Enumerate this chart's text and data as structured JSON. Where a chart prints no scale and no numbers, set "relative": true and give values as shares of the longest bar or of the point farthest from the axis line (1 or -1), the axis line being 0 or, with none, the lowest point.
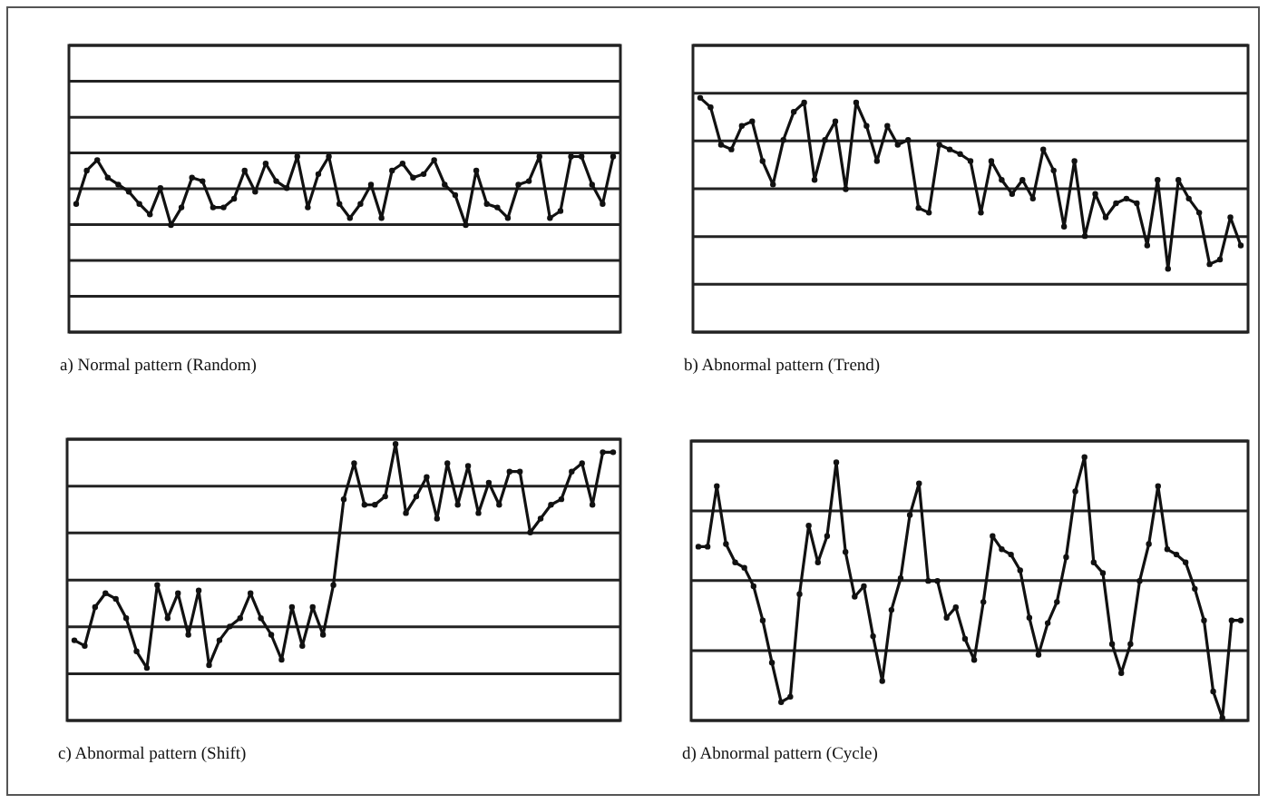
{
  "chart_data": [
    {
      "type": "line",
      "title": "a) Normal pattern (Random)",
      "marker": "circle",
      "relative": true,
      "ref_lines": [
        {
          "axis": "y",
          "value": 0.204
        },
        {
          "axis": "y",
          "value": 0.408
        },
        {
          "axis": "y",
          "value": 0.612
        },
        {
          "axis": "y",
          "value": 0.816
        },
        {
          "axis": "y",
          "value": 1.02
        },
        {
          "axis": "y",
          "value": 1.224
        },
        {
          "axis": "y",
          "value": 1.429
        },
        {
          "axis": "y",
          "value": 1.633
        }
      ],
      "categories": [
        null,
        null,
        null,
        null,
        null,
        null,
        null,
        null,
        null,
        null,
        null,
        null,
        null,
        null,
        null,
        null,
        null,
        null,
        null,
        null,
        null,
        null,
        null,
        null,
        null,
        null,
        null,
        null,
        null,
        null,
        null,
        null,
        null,
        null,
        null,
        null,
        null,
        null,
        null,
        null,
        null,
        null,
        null,
        null,
        null,
        null,
        null,
        null,
        null,
        null,
        null,
        null
      ],
      "series": [
        {
          "color": "#111111",
          "values": [
            0.73,
            0.92,
            0.98,
            0.88,
            0.84,
            0.8,
            0.73,
            0.67,
            0.82,
            0.61,
            0.71,
            0.88,
            0.86,
            0.71,
            0.71,
            0.76,
            0.92,
            0.8,
            0.96,
            0.86,
            0.82,
            1,
            0.71,
            0.9,
            1,
            0.73,
            0.65,
            0.73,
            0.84,
            0.65,
            0.92,
            0.96,
            0.88,
            0.9,
            0.98,
            0.84,
            0.78,
            0.61,
            0.92,
            0.73,
            0.71,
            0.65,
            0.84,
            0.86,
            1,
            0.65,
            0.69,
            1,
            1,
            0.84,
            0.73,
            1
          ]
        }
      ]
    },
    {
      "type": "line",
      "title": "b) Abnormal pattern (Trend)",
      "marker": "circle",
      "relative": true,
      "ref_lines": [
        {
          "axis": "y",
          "value": 0.204
        },
        {
          "axis": "y",
          "value": 0.408
        },
        {
          "axis": "y",
          "value": 0.612
        },
        {
          "axis": "y",
          "value": 0.816
        },
        {
          "axis": "y",
          "value": 1.02
        },
        {
          "axis": "y",
          "value": 1.224
        }
      ],
      "categories": [
        null,
        null,
        null,
        null,
        null,
        null,
        null,
        null,
        null,
        null,
        null,
        null,
        null,
        null,
        null,
        null,
        null,
        null,
        null,
        null,
        null,
        null,
        null,
        null,
        null,
        null,
        null,
        null,
        null,
        null,
        null,
        null,
        null,
        null,
        null,
        null,
        null,
        null,
        null,
        null,
        null,
        null,
        null,
        null,
        null,
        null,
        null,
        null,
        null,
        null,
        null,
        null,
        null
      ],
      "series": [
        {
          "color": "#111111",
          "values": [
            1,
            0.96,
            0.8,
            0.78,
            0.88,
            0.9,
            0.73,
            0.63,
            0.82,
            0.94,
            0.98,
            0.65,
            0.82,
            0.9,
            0.61,
            0.98,
            0.88,
            0.73,
            0.88,
            0.8,
            0.82,
            0.53,
            0.51,
            0.8,
            0.78,
            0.76,
            0.73,
            0.51,
            0.73,
            0.65,
            0.59,
            0.65,
            0.57,
            0.78,
            0.69,
            0.45,
            0.73,
            0.41,
            0.59,
            0.49,
            0.55,
            0.57,
            0.55,
            0.37,
            0.65,
            0.27,
            0.65,
            0.57,
            0.51,
            0.29,
            0.31,
            0.49,
            0.37
          ]
        }
      ]
    },
    {
      "type": "line",
      "title": "c) Abnormal pattern (Shift)",
      "marker": "circle",
      "relative": true,
      "ref_lines": [
        {
          "axis": "y",
          "value": 0.169
        },
        {
          "axis": "y",
          "value": 0.339
        },
        {
          "axis": "y",
          "value": 0.508
        },
        {
          "axis": "y",
          "value": 0.678
        },
        {
          "axis": "y",
          "value": 0.847
        },
        {
          "axis": "y",
          "value": 1.017
        }
      ],
      "categories": [
        null,
        null,
        null,
        null,
        null,
        null,
        null,
        null,
        null,
        null,
        null,
        null,
        null,
        null,
        null,
        null,
        null,
        null,
        null,
        null,
        null,
        null,
        null,
        null,
        null,
        null,
        null,
        null,
        null,
        null,
        null,
        null,
        null,
        null,
        null,
        null,
        null,
        null,
        null,
        null,
        null,
        null,
        null,
        null,
        null,
        null,
        null,
        null,
        null,
        null,
        null,
        null,
        null
      ],
      "series": [
        {
          "color": "#111111",
          "values": [
            0.29,
            0.27,
            0.41,
            0.46,
            0.44,
            0.37,
            0.25,
            0.19,
            0.49,
            0.37,
            0.46,
            0.31,
            0.47,
            0.2,
            0.29,
            0.34,
            0.37,
            0.46,
            0.37,
            0.31,
            0.22,
            0.41,
            0.27,
            0.41,
            0.31,
            0.49,
            0.8,
            0.93,
            0.78,
            0.78,
            0.81,
            1,
            0.75,
            0.81,
            0.88,
            0.73,
            0.93,
            0.78,
            0.92,
            0.75,
            0.86,
            0.78,
            0.9,
            0.9,
            0.68,
            0.73,
            0.78,
            0.8,
            0.9,
            0.93,
            0.78,
            0.97,
            0.97
          ]
        }
      ]
    },
    {
      "type": "line",
      "title": "d) Abnormal pattern (Cycle)",
      "marker": "circle",
      "relative": true,
      "ref_lines": [
        {
          "axis": "y",
          "value": 0.265
        },
        {
          "axis": "y",
          "value": 0.531
        },
        {
          "axis": "y",
          "value": 0.796
        },
        {
          "axis": "y",
          "value": 1.061
        }
      ],
      "categories": [
        null,
        null,
        null,
        null,
        null,
        null,
        null,
        null,
        null,
        null,
        null,
        null,
        null,
        null,
        null,
        null,
        null,
        null,
        null,
        null,
        null,
        null,
        null,
        null,
        null,
        null,
        null,
        null,
        null,
        null,
        null,
        null,
        null,
        null,
        null,
        null,
        null,
        null,
        null,
        null,
        null,
        null,
        null,
        null,
        null,
        null,
        null,
        null,
        null,
        null,
        null,
        null,
        null,
        null,
        null,
        null,
        null,
        null,
        null,
        null
      ],
      "series": [
        {
          "color": "#111111",
          "values": [
            0.66,
            0.66,
            0.89,
            0.67,
            0.6,
            0.58,
            0.51,
            0.38,
            0.22,
            0.07,
            0.09,
            0.48,
            0.74,
            0.6,
            0.7,
            0.98,
            0.64,
            0.47,
            0.51,
            0.32,
            0.15,
            0.42,
            0.54,
            0.78,
            0.9,
            0.53,
            0.53,
            0.39,
            0.43,
            0.31,
            0.23,
            0.45,
            0.7,
            0.65,
            0.63,
            0.57,
            0.39,
            0.25,
            0.37,
            0.45,
            0.62,
            0.87,
            1,
            0.6,
            0.56,
            0.29,
            0.18,
            0.29,
            0.53,
            0.67,
            0.89,
            0.65,
            0.63,
            0.6,
            0.5,
            0.38,
            0.11,
            0.01,
            0.38,
            0.38
          ]
        }
      ]
    }
  ]
}
